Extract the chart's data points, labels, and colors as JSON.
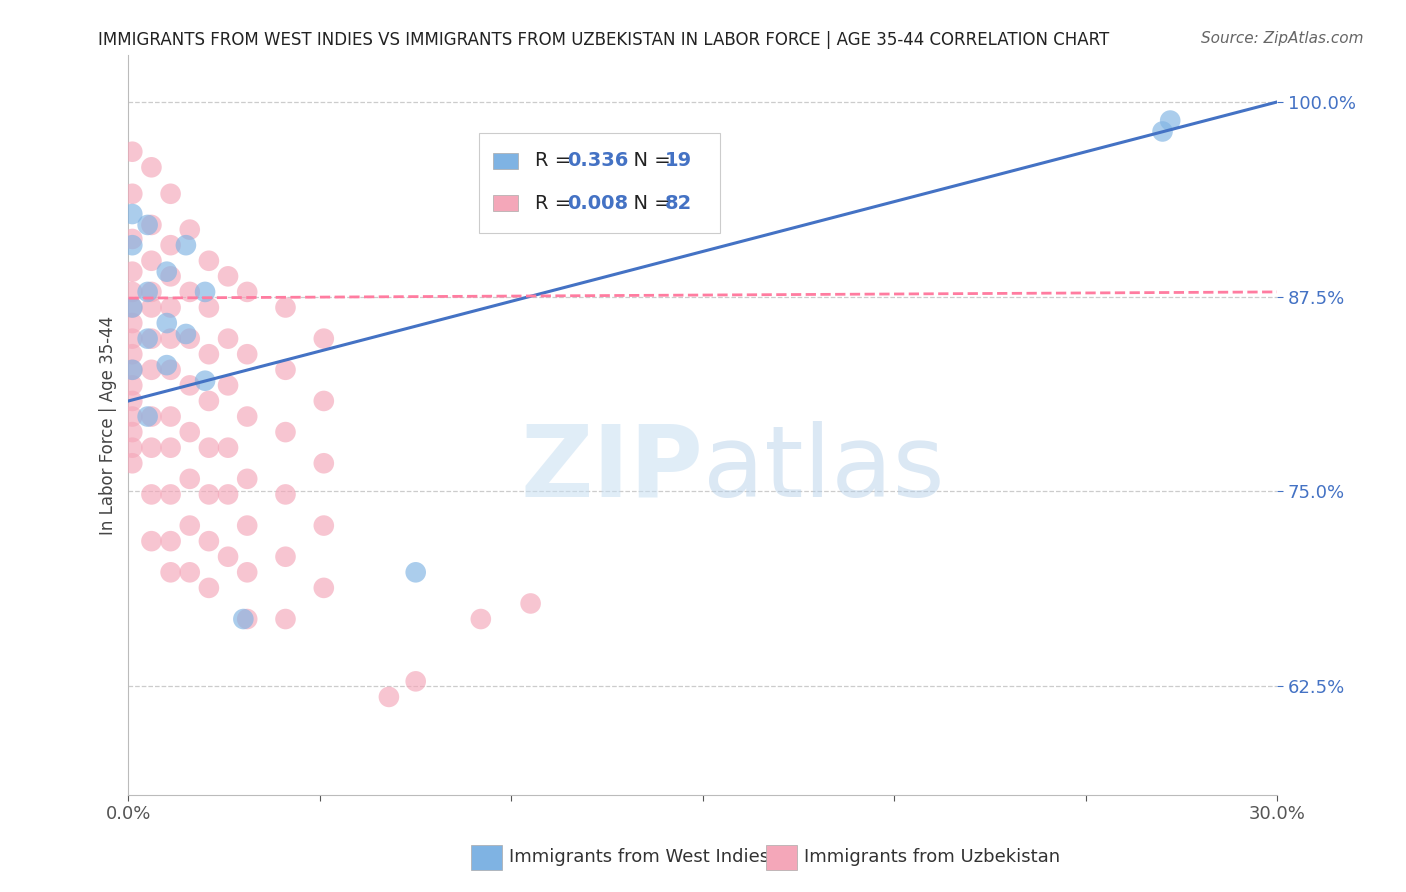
{
  "title": "IMMIGRANTS FROM WEST INDIES VS IMMIGRANTS FROM UZBEKISTAN IN LABOR FORCE | AGE 35-44 CORRELATION CHART",
  "source": "Source: ZipAtlas.com",
  "ylabel": "In Labor Force | Age 35-44",
  "xlim": [
    0.0,
    0.3
  ],
  "ylim": [
    0.555,
    1.03
  ],
  "yticks": [
    0.625,
    0.75,
    0.875,
    1.0
  ],
  "ytick_labels": [
    "62.5%",
    "75.0%",
    "87.5%",
    "100.0%"
  ],
  "xtick_positions": [
    0.0,
    0.05,
    0.1,
    0.15,
    0.2,
    0.25,
    0.3
  ],
  "xtick_labels": [
    "0.0%",
    "",
    "",
    "",
    "",
    "",
    "30.0%"
  ],
  "blue_color": "#7FB3E3",
  "pink_color": "#F4A7B9",
  "line_blue": "#4472C4",
  "line_pink": "#FF7CA0",
  "label1": "Immigrants from West Indies",
  "label2": "Immigrants from Uzbekistan",
  "blue_points": [
    [
      0.001,
      0.868
    ],
    [
      0.001,
      0.828
    ],
    [
      0.001,
      0.928
    ],
    [
      0.001,
      0.908
    ],
    [
      0.005,
      0.921
    ],
    [
      0.005,
      0.878
    ],
    [
      0.005,
      0.848
    ],
    [
      0.005,
      0.798
    ],
    [
      0.01,
      0.891
    ],
    [
      0.01,
      0.858
    ],
    [
      0.01,
      0.831
    ],
    [
      0.015,
      0.908
    ],
    [
      0.015,
      0.851
    ],
    [
      0.02,
      0.878
    ],
    [
      0.02,
      0.821
    ],
    [
      0.03,
      0.668
    ],
    [
      0.075,
      0.698
    ],
    [
      0.27,
      0.981
    ],
    [
      0.272,
      0.988
    ]
  ],
  "pink_points": [
    [
      0.001,
      0.968
    ],
    [
      0.001,
      0.941
    ],
    [
      0.001,
      0.912
    ],
    [
      0.001,
      0.891
    ],
    [
      0.001,
      0.878
    ],
    [
      0.001,
      0.868
    ],
    [
      0.001,
      0.858
    ],
    [
      0.001,
      0.848
    ],
    [
      0.001,
      0.838
    ],
    [
      0.001,
      0.828
    ],
    [
      0.001,
      0.818
    ],
    [
      0.001,
      0.808
    ],
    [
      0.001,
      0.798
    ],
    [
      0.001,
      0.788
    ],
    [
      0.001,
      0.778
    ],
    [
      0.001,
      0.768
    ],
    [
      0.006,
      0.958
    ],
    [
      0.006,
      0.921
    ],
    [
      0.006,
      0.898
    ],
    [
      0.006,
      0.878
    ],
    [
      0.006,
      0.868
    ],
    [
      0.006,
      0.848
    ],
    [
      0.006,
      0.828
    ],
    [
      0.006,
      0.798
    ],
    [
      0.006,
      0.778
    ],
    [
      0.006,
      0.748
    ],
    [
      0.006,
      0.718
    ],
    [
      0.011,
      0.941
    ],
    [
      0.011,
      0.908
    ],
    [
      0.011,
      0.888
    ],
    [
      0.011,
      0.868
    ],
    [
      0.011,
      0.848
    ],
    [
      0.011,
      0.828
    ],
    [
      0.011,
      0.798
    ],
    [
      0.011,
      0.778
    ],
    [
      0.011,
      0.748
    ],
    [
      0.011,
      0.718
    ],
    [
      0.011,
      0.698
    ],
    [
      0.016,
      0.918
    ],
    [
      0.016,
      0.878
    ],
    [
      0.016,
      0.848
    ],
    [
      0.016,
      0.818
    ],
    [
      0.016,
      0.788
    ],
    [
      0.016,
      0.758
    ],
    [
      0.016,
      0.728
    ],
    [
      0.016,
      0.698
    ],
    [
      0.021,
      0.898
    ],
    [
      0.021,
      0.868
    ],
    [
      0.021,
      0.838
    ],
    [
      0.021,
      0.808
    ],
    [
      0.021,
      0.778
    ],
    [
      0.021,
      0.748
    ],
    [
      0.021,
      0.718
    ],
    [
      0.021,
      0.688
    ],
    [
      0.026,
      0.888
    ],
    [
      0.026,
      0.848
    ],
    [
      0.026,
      0.818
    ],
    [
      0.026,
      0.778
    ],
    [
      0.026,
      0.748
    ],
    [
      0.026,
      0.708
    ],
    [
      0.031,
      0.878
    ],
    [
      0.031,
      0.838
    ],
    [
      0.031,
      0.798
    ],
    [
      0.031,
      0.758
    ],
    [
      0.031,
      0.728
    ],
    [
      0.031,
      0.698
    ],
    [
      0.031,
      0.668
    ],
    [
      0.041,
      0.868
    ],
    [
      0.041,
      0.828
    ],
    [
      0.041,
      0.788
    ],
    [
      0.041,
      0.748
    ],
    [
      0.041,
      0.708
    ],
    [
      0.041,
      0.668
    ],
    [
      0.051,
      0.848
    ],
    [
      0.051,
      0.808
    ],
    [
      0.051,
      0.768
    ],
    [
      0.051,
      0.728
    ],
    [
      0.051,
      0.688
    ],
    [
      0.068,
      0.618
    ],
    [
      0.075,
      0.628
    ],
    [
      0.092,
      0.668
    ],
    [
      0.105,
      0.678
    ]
  ],
  "blue_line_x": [
    0.0,
    0.3
  ],
  "blue_line_y": [
    0.808,
    1.0
  ],
  "pink_line_x": [
    0.0,
    0.3
  ],
  "pink_line_y": [
    0.874,
    0.878
  ]
}
